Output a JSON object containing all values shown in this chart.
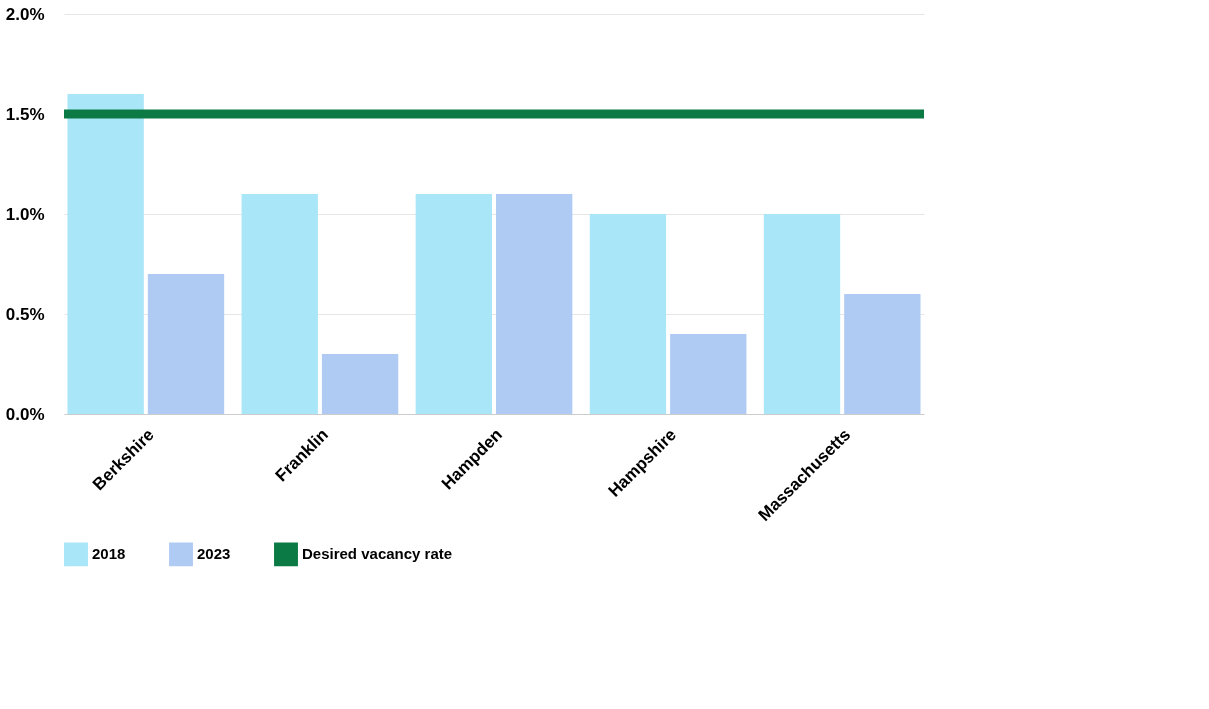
{
  "chart_data": {
    "type": "bar",
    "categories": [
      "Berkshire",
      "Franklin",
      "Hampden",
      "Hampshire",
      "Massachusetts"
    ],
    "series": [
      {
        "name": "2018",
        "color": "#a8e6f8",
        "values": [
          1.6,
          1.1,
          1.1,
          1.0,
          1.0
        ]
      },
      {
        "name": "2023",
        "color": "#b0cbf3",
        "values": [
          0.7,
          0.3,
          1.1,
          0.4,
          0.6
        ]
      }
    ],
    "ylim": [
      0,
      2.0
    ],
    "yticks": [
      {
        "value": 0,
        "label": "0.0%"
      },
      {
        "value": 0.5,
        "label": "0.5%"
      },
      {
        "value": 1.0,
        "label": "1.0%"
      },
      {
        "value": 1.5,
        "label": "1.5%"
      },
      {
        "value": 2.0,
        "label": "2.0%"
      }
    ],
    "ref_lines": [
      {
        "axis": "y",
        "value": 1.5,
        "label": "Desired vacancy rate",
        "color": "#0b7a45"
      }
    ],
    "grid": "y",
    "legend": "bottom"
  }
}
